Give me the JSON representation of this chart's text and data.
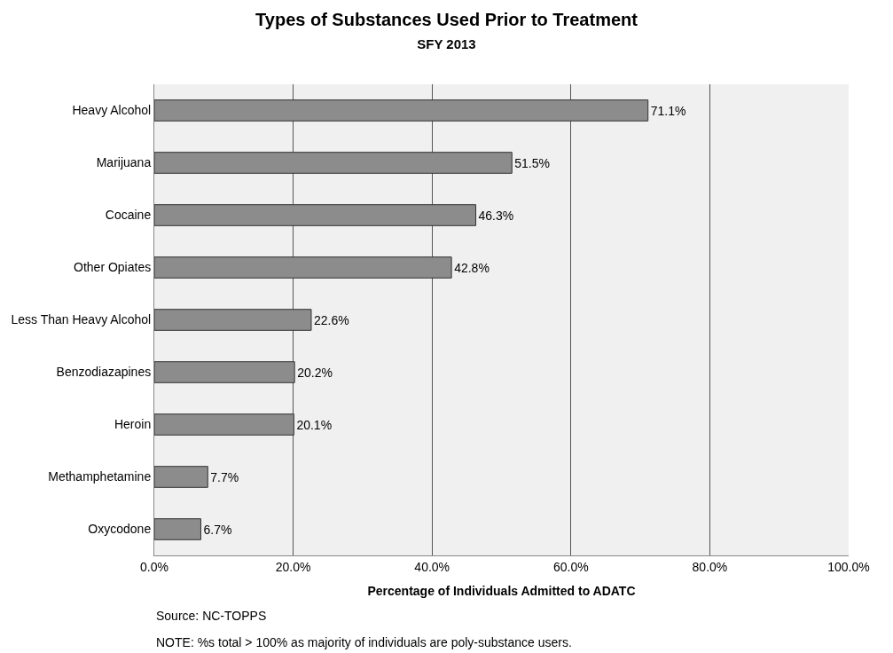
{
  "chart_data": {
    "type": "bar",
    "orientation": "horizontal",
    "title": "Types of Substances Used Prior to Treatment",
    "subtitle": "SFY 2013",
    "xlabel": "Percentage of Individuals Admitted to ADATC",
    "categories": [
      "Heavy Alcohol",
      "Marijuana",
      "Cocaine",
      "Other Opiates",
      "Less Than Heavy Alcohol",
      "Benzodiazapines",
      "Heroin",
      "Methamphetamine",
      "Oxycodone"
    ],
    "values": [
      71.1,
      51.5,
      46.3,
      42.8,
      22.6,
      20.2,
      20.1,
      7.7,
      6.7
    ],
    "value_labels": [
      "71.1%",
      "51.5%",
      "46.3%",
      "42.8%",
      "22.6%",
      "20.2%",
      "20.1%",
      "7.7%",
      "6.7%"
    ],
    "color": "#8c8c8c",
    "xlim": [
      0,
      100
    ],
    "xticks": [
      {
        "value": 0,
        "label": "0.0%"
      },
      {
        "value": 20,
        "label": "20.0%"
      },
      {
        "value": 40,
        "label": "40.0%"
      },
      {
        "value": 60,
        "label": "60.0%"
      },
      {
        "value": 80,
        "label": "80.0%"
      },
      {
        "value": 100,
        "label": "100.0%"
      }
    ],
    "grid": "x",
    "annotations": [
      "Source: NC-TOPPS",
      "NOTE: %s total > 100% as majority of individuals are poly-substance users."
    ]
  }
}
